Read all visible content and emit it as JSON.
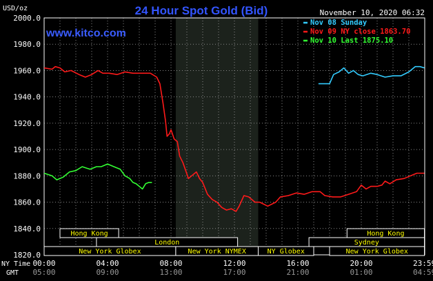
{
  "chart_data": {
    "type": "line",
    "title": "24 Hour Spot Gold (Bid)",
    "watermark": "www.kitco.com",
    "timestamp": "November 10, 2020 06:32",
    "ylabel": "USD/oz",
    "ylim": [
      1820,
      2000
    ],
    "yticks": [
      "2000.0",
      "1980.0",
      "1960.0",
      "1940.0",
      "1920.0",
      "1900.0",
      "1880.0",
      "1860.0",
      "1840.0",
      "1820.0"
    ],
    "ytick_values": [
      2000,
      1980,
      1960,
      1940,
      1920,
      1900,
      1880,
      1860,
      1840,
      1820
    ],
    "xlim": [
      0,
      24
    ],
    "x_ticks_ny": [
      "00:00",
      "04:00",
      "08:00",
      "12:00",
      "16:00",
      "20:00",
      "23:59"
    ],
    "x_ticks_gmt": [
      "05:00",
      "09:00",
      "13:00",
      "17:00",
      "21:00",
      "01:00",
      "04:59"
    ],
    "x_tick_hours": [
      0,
      4,
      8,
      12,
      16,
      20,
      23.98
    ],
    "ny_time_label": "NY Time",
    "gmt_label": "GMT",
    "grid": true,
    "highlight_band": [
      8.3,
      13.5
    ],
    "legend": [
      {
        "label": "Nov 08 Sunday",
        "color": "#33ccff"
      },
      {
        "label": "Nov 09 NY close 1863.70",
        "color": "#ff1a1a"
      },
      {
        "label": "Nov 10 Last 1875.10",
        "color": "#33ff33"
      }
    ],
    "series": [
      {
        "color": "#ff1a1a",
        "points": [
          [
            0,
            1962
          ],
          [
            0.5,
            1961
          ],
          [
            0.7,
            1963
          ],
          [
            1.0,
            1962
          ],
          [
            1.3,
            1959
          ],
          [
            1.7,
            1960
          ],
          [
            2.2,
            1957
          ],
          [
            2.6,
            1955
          ],
          [
            3.0,
            1957
          ],
          [
            3.4,
            1960
          ],
          [
            3.7,
            1958
          ],
          [
            4.1,
            1958
          ],
          [
            4.6,
            1957
          ],
          [
            5.1,
            1959
          ],
          [
            5.6,
            1958
          ],
          [
            6.2,
            1958
          ],
          [
            6.7,
            1958
          ],
          [
            7.1,
            1955
          ],
          [
            7.3,
            1950
          ],
          [
            7.5,
            1935
          ],
          [
            7.65,
            1922
          ],
          [
            7.75,
            1910
          ],
          [
            7.9,
            1912
          ],
          [
            8.0,
            1915
          ],
          [
            8.2,
            1908
          ],
          [
            8.4,
            1906
          ],
          [
            8.55,
            1895
          ],
          [
            8.75,
            1890
          ],
          [
            8.9,
            1885
          ],
          [
            9.1,
            1878
          ],
          [
            9.3,
            1880
          ],
          [
            9.6,
            1883
          ],
          [
            9.8,
            1878
          ],
          [
            10.0,
            1875
          ],
          [
            10.3,
            1866
          ],
          [
            10.6,
            1862
          ],
          [
            10.9,
            1860
          ],
          [
            11.2,
            1856
          ],
          [
            11.5,
            1854
          ],
          [
            11.8,
            1855
          ],
          [
            12.1,
            1853
          ],
          [
            12.3,
            1857
          ],
          [
            12.6,
            1865
          ],
          [
            12.9,
            1864
          ],
          [
            13.3,
            1860
          ],
          [
            13.6,
            1860
          ],
          [
            14.1,
            1857
          ],
          [
            14.6,
            1860
          ],
          [
            14.9,
            1864
          ],
          [
            15.4,
            1865
          ],
          [
            15.9,
            1867
          ],
          [
            16.4,
            1866
          ],
          [
            16.9,
            1868
          ],
          [
            17.4,
            1868
          ],
          [
            17.7,
            1865
          ],
          [
            18.2,
            1864
          ],
          [
            18.7,
            1864
          ],
          [
            19.2,
            1866
          ],
          [
            19.7,
            1868
          ],
          [
            20.0,
            1873
          ],
          [
            20.3,
            1870
          ],
          [
            20.6,
            1872
          ],
          [
            21.0,
            1872
          ],
          [
            21.3,
            1873
          ],
          [
            21.5,
            1876
          ],
          [
            21.8,
            1874
          ],
          [
            22.2,
            1877
          ],
          [
            22.7,
            1878
          ],
          [
            23.1,
            1880
          ],
          [
            23.5,
            1882
          ],
          [
            23.98,
            1882
          ]
        ]
      },
      {
        "color": "#33ccff",
        "points": [
          [
            17.3,
            1950
          ],
          [
            18.0,
            1950
          ],
          [
            18.25,
            1957
          ],
          [
            18.6,
            1959
          ],
          [
            18.9,
            1962
          ],
          [
            19.2,
            1958
          ],
          [
            19.5,
            1960
          ],
          [
            19.8,
            1957
          ],
          [
            20.1,
            1956
          ],
          [
            20.6,
            1958
          ],
          [
            21.0,
            1957
          ],
          [
            21.5,
            1955
          ],
          [
            22.0,
            1956
          ],
          [
            22.5,
            1956
          ],
          [
            23.0,
            1959
          ],
          [
            23.4,
            1963
          ],
          [
            23.7,
            1963
          ],
          [
            23.98,
            1962
          ]
        ]
      },
      {
        "color": "#33ff33",
        "points": [
          [
            0,
            1882
          ],
          [
            0.5,
            1880
          ],
          [
            0.8,
            1877
          ],
          [
            1.2,
            1879
          ],
          [
            1.6,
            1883
          ],
          [
            2.0,
            1884
          ],
          [
            2.4,
            1887
          ],
          [
            2.9,
            1885
          ],
          [
            3.3,
            1887
          ],
          [
            3.6,
            1887
          ],
          [
            4.0,
            1889
          ],
          [
            4.4,
            1887
          ],
          [
            4.8,
            1885
          ],
          [
            5.1,
            1880
          ],
          [
            5.4,
            1878
          ],
          [
            5.6,
            1875
          ],
          [
            5.8,
            1874
          ],
          [
            6.0,
            1872
          ],
          [
            6.2,
            1870
          ],
          [
            6.4,
            1874
          ],
          [
            6.6,
            1875
          ],
          [
            6.8,
            1875
          ]
        ]
      }
    ],
    "market_sessions": [
      {
        "label": "Hong Kong",
        "start": 1.0,
        "end": 4.7,
        "row": 0
      },
      {
        "label": "Hong Kong",
        "start": 19.1,
        "end": 23.98,
        "row": 0
      },
      {
        "label": "London",
        "start": 3.3,
        "end": 12.2,
        "row": 1
      },
      {
        "label": "Sydney",
        "start": 16.7,
        "end": 23.98,
        "row": 1
      },
      {
        "label": "New York Globex",
        "start": 0,
        "end": 8.3,
        "row": 2
      },
      {
        "label": "New York NYMEX",
        "start": 8.3,
        "end": 13.5,
        "row": 2
      },
      {
        "label": "NY Globex",
        "start": 13.5,
        "end": 17.0,
        "row": 2
      },
      {
        "label": "New York Globex",
        "start": 18.0,
        "end": 23.98,
        "row": 2
      }
    ]
  }
}
